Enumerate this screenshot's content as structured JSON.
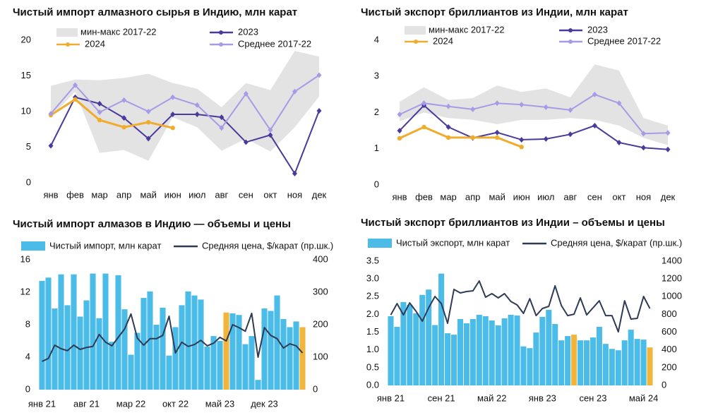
{
  "chart_data": [
    {
      "type": "line",
      "title": "Чистый импорт алмазного сырья в Индию, млн карат",
      "categories": [
        "янв",
        "фев",
        "мар",
        "апр",
        "май",
        "июн",
        "июл",
        "авг",
        "сен",
        "окт",
        "ноя",
        "дек"
      ],
      "ylim": [
        0,
        20
      ],
      "yticks": [
        0,
        5,
        10,
        15,
        20
      ],
      "series": [
        {
          "name": "мин-макс 2017-22",
          "color": "#e3e3e3",
          "min": [
            9.2,
            12.8,
            4.2,
            4.6,
            3.1,
            9.2,
            7.8,
            4.5,
            6.2,
            4.4,
            7.8,
            12.1
          ],
          "max": [
            13.6,
            14.5,
            14.4,
            14.7,
            15.3,
            14.0,
            13.2,
            10.6,
            14.0,
            13.0,
            18.5,
            17.7
          ]
        },
        {
          "name": "2023",
          "color": "#4a3a9c",
          "marker": "diamond",
          "values": [
            5.2,
            12.0,
            11.1,
            9.1,
            6.2,
            9.6,
            9.6,
            9.2,
            5.7,
            6.7,
            1.3,
            10.1
          ]
        },
        {
          "name": "2024",
          "color": "#f0ac2d",
          "marker": "circle",
          "values": [
            9.5,
            11.7,
            8.8,
            7.8,
            8.5,
            7.7,
            null,
            null,
            null,
            null,
            null,
            null
          ]
        },
        {
          "name": "Среднее 2017-22",
          "color": "#a99ae6",
          "marker": "diamond",
          "values": [
            9.7,
            13.7,
            9.9,
            11.6,
            10.0,
            12.0,
            10.9,
            7.7,
            12.5,
            7.4,
            12.8,
            15.1
          ]
        }
      ]
    },
    {
      "type": "line",
      "title": "Чистый экспорт бриллиантов из Индии, млн карат",
      "categories": [
        "янв",
        "фев",
        "мар",
        "апр",
        "май",
        "июн",
        "июл",
        "авг",
        "сен",
        "окт",
        "ноя",
        "дек"
      ],
      "ylim": [
        0,
        4
      ],
      "yticks": [
        0,
        1,
        2,
        3,
        4
      ],
      "series": [
        {
          "name": "мин-макс 2017-22",
          "color": "#e3e3e3",
          "min": [
            1.76,
            2.0,
            1.85,
            1.8,
            1.68,
            1.8,
            1.8,
            1.85,
            1.8,
            1.64,
            1.3,
            1.1
          ],
          "max": [
            2.3,
            2.7,
            2.35,
            2.4,
            2.75,
            2.57,
            2.67,
            2.42,
            3.33,
            3.16,
            1.85,
            1.64
          ]
        },
        {
          "name": "2023",
          "color": "#4a3a9c",
          "marker": "diamond",
          "values": [
            1.5,
            2.2,
            1.6,
            1.3,
            1.45,
            1.25,
            1.27,
            1.4,
            1.64,
            1.17,
            1.03,
            0.98
          ]
        },
        {
          "name": "2024",
          "color": "#f0ac2d",
          "marker": "circle",
          "values": [
            1.29,
            1.6,
            1.31,
            1.31,
            1.31,
            1.05,
            null,
            null,
            null,
            null,
            null,
            null
          ]
        },
        {
          "name": "Среднее 2017-22",
          "color": "#a99ae6",
          "marker": "diamond",
          "values": [
            1.95,
            2.26,
            2.17,
            2.09,
            2.26,
            2.22,
            2.15,
            2.07,
            2.5,
            2.26,
            1.42,
            1.44
          ]
        }
      ]
    },
    {
      "type": "bar_line",
      "title": "Чистый импорт алмазов в Индию — объемы и цены",
      "categories": [
        "янв 21",
        null,
        null,
        null,
        null,
        null,
        null,
        "авг 21",
        null,
        null,
        null,
        null,
        null,
        null,
        "мар 22",
        null,
        null,
        null,
        null,
        null,
        null,
        "окт 22",
        null,
        null,
        null,
        null,
        null,
        null,
        "май 23",
        null,
        null,
        null,
        null,
        null,
        null,
        "дек 23",
        null,
        null,
        null,
        null,
        null,
        null
      ],
      "ylim": [
        0,
        16
      ],
      "yticks": [
        0,
        4,
        8,
        12,
        16
      ],
      "y2lim": [
        0,
        400
      ],
      "y2ticks": [
        0,
        100,
        200,
        300,
        400
      ],
      "series": [
        {
          "name": "Чистый импорт, млн карат",
          "color": "#4bbce8",
          "colors": [
            "#4bbce8",
            "#4bbce8",
            "#4bbce8",
            "#4bbce8",
            "#4bbce8",
            "#4bbce8",
            "#4bbce8",
            "#4bbce8",
            "#4bbce8",
            "#4bbce8",
            "#4bbce8",
            "#4bbce8",
            "#4bbce8",
            "#4bbce8",
            "#4bbce8",
            "#4bbce8",
            "#4bbce8",
            "#4bbce8",
            "#4bbce8",
            "#4bbce8",
            "#4bbce8",
            "#4bbce8",
            "#4bbce8",
            "#4bbce8",
            "#4bbce8",
            "#4bbce8",
            "#4bbce8",
            "#4bbce8",
            "#4bbce8",
            "#f2b53c",
            "#4bbce8",
            "#4bbce8",
            "#4bbce8",
            "#4bbce8",
            "#4bbce8",
            "#4bbce8",
            "#4bbce8",
            "#4bbce8",
            "#4bbce8",
            "#4bbce8",
            "#4bbce8",
            "#f2b53c"
          ],
          "values": [
            13.4,
            13.8,
            10.0,
            14.2,
            10.4,
            14.2,
            9.0,
            11.0,
            14.3,
            8.8,
            14.3,
            5.9,
            14.1,
            9.9,
            4.3,
            7.0,
            11.3,
            12.1,
            8.0,
            10.1,
            4.2,
            7.7,
            10.4,
            12.1,
            11.6,
            11.1,
            5.3,
            6.6,
            6.0,
            9.5,
            9.4,
            9.2,
            5.6,
            6.6,
            1.2,
            10.0,
            9.7,
            11.6,
            8.7,
            7.7,
            8.4,
            7.7
          ]
        },
        {
          "name": "Средняя цена, $/карат (пр.шк.)",
          "color": "#2f3b55",
          "axis": "y2",
          "values": [
            87,
            96,
            137,
            126,
            120,
            137,
            124,
            130,
            133,
            170,
            146,
            135,
            161,
            187,
            233,
            159,
            137,
            157,
            157,
            167,
            226,
            113,
            146,
            133,
            139,
            152,
            135,
            143,
            161,
            150,
            200,
            191,
            180,
            235,
            100,
            191,
            167,
            157,
            128,
            141,
            135,
            113
          ]
        }
      ]
    },
    {
      "type": "bar_line",
      "title": "Чистый экспорт бриллиантов из Индии – объемы и цены",
      "categories": [
        "янв 21",
        null,
        null,
        null,
        null,
        null,
        null,
        null,
        "сен 21",
        null,
        null,
        null,
        null,
        null,
        null,
        null,
        "май 22",
        null,
        null,
        null,
        null,
        null,
        null,
        null,
        "янв 23",
        null,
        null,
        null,
        null,
        null,
        null,
        null,
        "сен 23",
        null,
        null,
        null,
        null,
        null,
        null,
        null,
        "май 24",
        null
      ],
      "ylim": [
        0,
        3.5
      ],
      "yticks": [
        {
          "value": 0,
          "label": "0.0"
        },
        0.5,
        {
          "value": 1,
          "label": "1.0"
        },
        1.5,
        {
          "value": 2,
          "label": "2.0"
        },
        2.5,
        {
          "value": 3,
          "label": "3.0"
        },
        3.5
      ],
      "y2lim": [
        0,
        1400
      ],
      "y2ticks": [
        0,
        200,
        400,
        600,
        800,
        1000,
        1200,
        1400
      ],
      "series": [
        {
          "name": "Чистый экспорт, млн карат",
          "color": "#4bbce8",
          "colors": [
            "#4bbce8",
            "#4bbce8",
            "#4bbce8",
            "#4bbce8",
            "#4bbce8",
            "#4bbce8",
            "#4bbce8",
            "#4bbce8",
            "#4bbce8",
            "#4bbce8",
            "#4bbce8",
            "#4bbce8",
            "#4bbce8",
            "#4bbce8",
            "#4bbce8",
            "#4bbce8",
            "#4bbce8",
            "#4bbce8",
            "#4bbce8",
            "#4bbce8",
            "#4bbce8",
            "#4bbce8",
            "#4bbce8",
            "#4bbce8",
            "#4bbce8",
            "#4bbce8",
            "#4bbce8",
            "#4bbce8",
            "#4bbce8",
            "#f2b53c",
            "#4bbce8",
            "#4bbce8",
            "#4bbce8",
            "#4bbce8",
            "#4bbce8",
            "#4bbce8",
            "#4bbce8",
            "#4bbce8",
            "#4bbce8",
            "#4bbce8",
            "#4bbce8",
            "#f2b53c"
          ],
          "values": [
            1.95,
            1.65,
            2.35,
            2.27,
            2.03,
            2.55,
            2.7,
            1.7,
            3.15,
            1.47,
            1.43,
            1.87,
            1.75,
            1.87,
            1.99,
            1.95,
            1.83,
            1.69,
            1.89,
            1.99,
            1.97,
            1.1,
            1.05,
            1.49,
            1.93,
            2.13,
            1.73,
            1.27,
            1.39,
            1.43,
            1.27,
            1.27,
            1.35,
            1.65,
            1.17,
            1.03,
            0.99,
            1.27,
            1.57,
            1.31,
            1.29,
            1.07
          ]
        },
        {
          "name": "Средняя цена, $/карат (пр.шк.)",
          "color": "#2f3b55",
          "axis": "y2",
          "values": [
            795,
            922,
            795,
            930,
            835,
            724,
            875,
            1002,
            922,
            700,
            1082,
            1042,
            1058,
            1066,
            1177,
            994,
            1034,
            986,
            1034,
            946,
            907,
            811,
            978,
            787,
            867,
            891,
            1122,
            899,
            787,
            803,
            986,
            795,
            875,
            954,
            787,
            787,
            604,
            954,
            748,
            756,
            1002,
            867
          ]
        }
      ]
    }
  ]
}
